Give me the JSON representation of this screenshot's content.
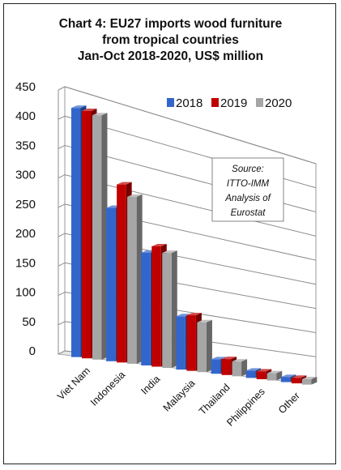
{
  "chart_data": {
    "type": "bar",
    "title_lines": [
      "Chart 4: EU27 imports wood furniture",
      "from tropical countries",
      "Jan-Oct 2018-2020, US$ million"
    ],
    "categories": [
      "Viet Nam",
      "Indonesia",
      "India",
      "Malaysia",
      "Thailand",
      "Philippines",
      "Other"
    ],
    "series": [
      {
        "name": "2018",
        "color": "#3366cc",
        "values": [
          420,
          265,
          200,
          97,
          27,
          14,
          10
        ]
      },
      {
        "name": "2019",
        "color": "#c00000",
        "values": [
          420,
          310,
          215,
          102,
          30,
          15,
          11
        ]
      },
      {
        "name": "2020",
        "color": "#a6a6a6",
        "values": [
          418,
          293,
          207,
          92,
          28,
          14,
          11
        ]
      }
    ],
    "yticks": [
      0,
      50,
      100,
      150,
      200,
      250,
      300,
      350,
      400,
      450
    ],
    "ylim": [
      0,
      450
    ],
    "grid": true,
    "legend": "top-right",
    "annotation_lines": [
      "Source:",
      "ITTO-IMM",
      "Analysis of",
      "Eurostat"
    ]
  }
}
